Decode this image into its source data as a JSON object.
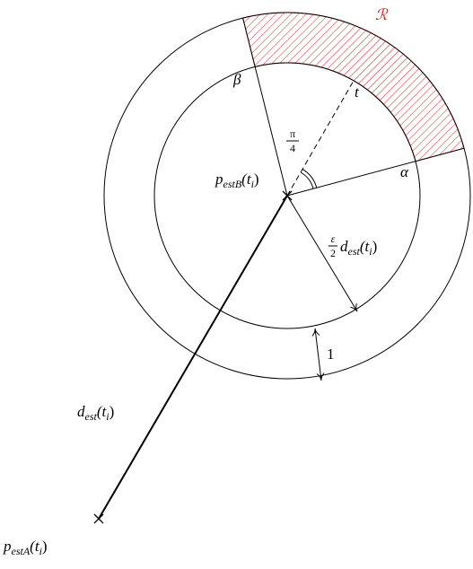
{
  "labels": {
    "region": "ℛ",
    "beta": "β",
    "t": "t",
    "alpha": "α",
    "pi_over_4": [
      "π",
      "4"
    ],
    "p_estB": [
      "p",
      "estB",
      "(t",
      "i",
      ")"
    ],
    "eps_d": [
      "ε",
      "2",
      "d",
      "est",
      "(t",
      "i",
      ")"
    ],
    "one": "1",
    "d_est": [
      "d",
      "est",
      "(t",
      "i",
      ")"
    ],
    "p_estA": [
      "p",
      "estA",
      "(t",
      "i",
      ")"
    ]
  }
}
